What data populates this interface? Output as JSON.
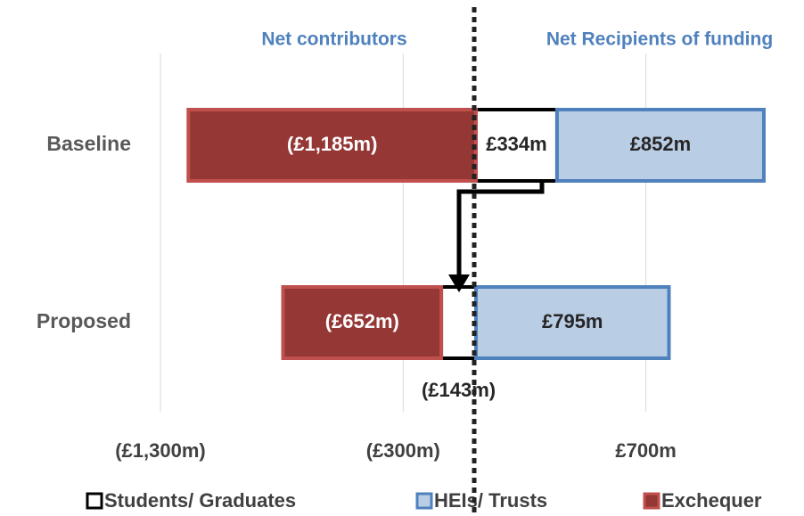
{
  "chart_data": {
    "type": "stacked_barh",
    "categories": [
      "Baseline",
      "Proposed"
    ],
    "series": [
      {
        "name": "Students/ Graduates",
        "color": "#ffffff",
        "edge": "#000000",
        "values": [
          334,
          -143
        ],
        "value_labels": [
          "£334m",
          "(£143m)"
        ]
      },
      {
        "name": "HEIs/ Trusts",
        "color": "#b9cde5",
        "edge": "#4f81bd",
        "values": [
          852,
          795
        ],
        "value_labels": [
          "£852m",
          "£795m"
        ]
      },
      {
        "name": "Exchequer",
        "color": "#953735",
        "edge": "#c0504d",
        "values": [
          -1185,
          -652
        ],
        "value_labels": [
          "(£1,185m)",
          "(£652m)"
        ]
      }
    ],
    "xlim": [
      -1300,
      1300
    ],
    "xticks": [
      {
        "value": -1300,
        "label": "(£1,300m)"
      },
      {
        "value": -300,
        "label": "(£300m)"
      },
      {
        "value": 700,
        "label": "£700m"
      }
    ],
    "grid": true,
    "annotations": [
      "Net contributors",
      "Net Recipients of funding"
    ],
    "legend": "bottom"
  }
}
